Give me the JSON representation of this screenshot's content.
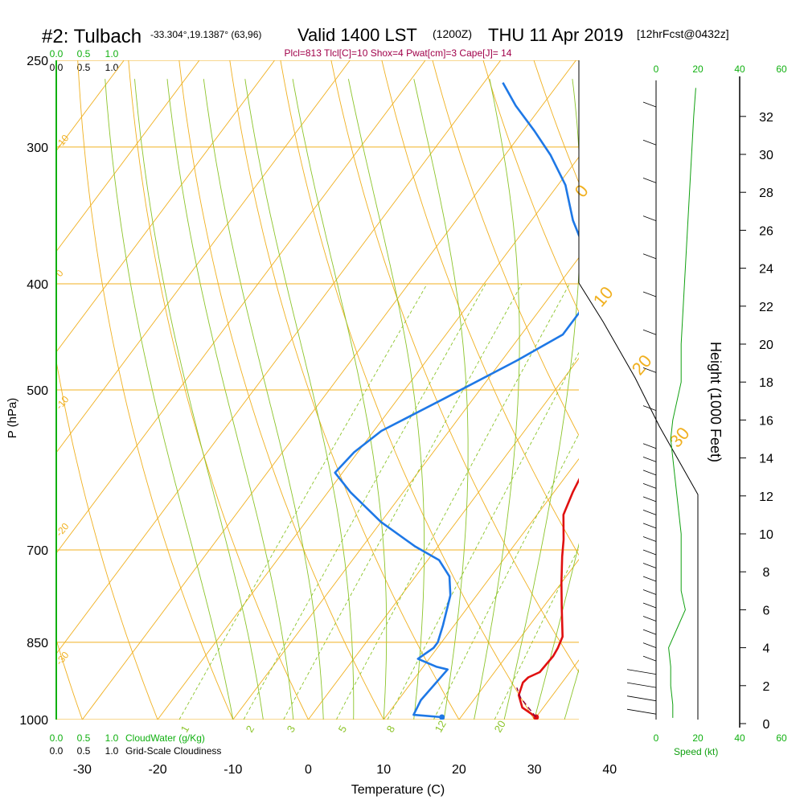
{
  "header": {
    "title": "#2: Tulbach",
    "coords": "-33.304°,19.1387° (63,96)",
    "valid": "Valid 1400 LST",
    "zulu": "(1200Z)",
    "date": "THU 11 Apr 2019",
    "fcst": "[12hrFcst@0432z]",
    "indices": "Plcl=813 Tlcl[C]=10 Shox=4 Pwat[cm]=3 Cape[J]= 14"
  },
  "labels": {
    "y_axis": "P (hPa)",
    "x_axis": "Temperature (C)",
    "height_axis": "Height (1000 Feet)",
    "speed_axis": "Speed (kt)",
    "cloudwater": "CloudWater (g/Kg)",
    "cloudiness": "Grid-Scale Cloudiness",
    "cw_ticks": [
      "0.0",
      "0.5",
      "1.0"
    ],
    "cloud_ticks": [
      "0.0",
      "0.5",
      "1.0"
    ]
  },
  "colors": {
    "isotherm": "#f0b020",
    "dry_adiabat": "#8cc42a",
    "moist_adiabat": "#8cc42a",
    "temperature": "#e01010",
    "dewpoint": "#1e78e6",
    "parcel": "#8b0040",
    "speed_line": "#10a010",
    "indices": "#a0004a",
    "grid_green": "#10b010"
  },
  "chart_data": {
    "type": "line",
    "title": "#2: Tulbach Valid 1400 LST (1200Z) THU 11 Apr 2019",
    "xlabel": "Temperature (C)",
    "ylabel": "P (hPa)",
    "y_scale": "log",
    "ylim": [
      1000,
      250
    ],
    "xlim": [
      -35,
      45
    ],
    "x_ticks": [
      -30,
      -20,
      -10,
      0,
      10,
      20,
      30,
      40
    ],
    "p_ticks": [
      250,
      300,
      400,
      500,
      700,
      850,
      1000
    ],
    "height_ticks_kft": [
      0,
      2,
      4,
      6,
      8,
      10,
      12,
      14,
      16,
      18,
      20,
      22,
      24,
      26,
      28,
      30,
      32
    ],
    "speed_ticks_kt": [
      0,
      20,
      40,
      60
    ],
    "isotherm_labels": [
      "-10",
      "0",
      "10",
      "20",
      "30",
      "0",
      "-10",
      "-20",
      "-30"
    ],
    "moist_labels": [
      "1",
      "2",
      "3",
      "5",
      "8",
      "12",
      "20"
    ],
    "series": [
      {
        "name": "Temperature",
        "points": [
          [
            30.0,
            995
          ],
          [
            27.2,
            975
          ],
          [
            25.5,
            950
          ],
          [
            24.8,
            925
          ],
          [
            25.0,
            915
          ],
          [
            26.0,
            905
          ],
          [
            26.2,
            875
          ],
          [
            26.0,
            860
          ],
          [
            25.5,
            840
          ],
          [
            22.5,
            790
          ],
          [
            20.0,
            750
          ],
          [
            17.5,
            710
          ],
          [
            16.0,
            685
          ],
          [
            13.5,
            650
          ],
          [
            12.5,
            620
          ],
          [
            12.0,
            600
          ],
          [
            11.0,
            560
          ],
          [
            10.0,
            525
          ],
          [
            9.0,
            500
          ],
          [
            7.5,
            465
          ],
          [
            5.5,
            430
          ],
          [
            3.5,
            400
          ],
          [
            1.5,
            375
          ],
          [
            -1.0,
            350
          ],
          [
            -3.5,
            325
          ],
          [
            -6.5,
            310
          ],
          [
            -9.0,
            295
          ],
          [
            -12.0,
            282
          ],
          [
            -15.5,
            270
          ],
          [
            -18.5,
            260
          ]
        ]
      },
      {
        "name": "Dewpoint",
        "points": [
          [
            17.5,
            995
          ],
          [
            13.5,
            990
          ],
          [
            13.0,
            960
          ],
          [
            13.5,
            900
          ],
          [
            11.8,
            895
          ],
          [
            8.5,
            880
          ],
          [
            9.5,
            860
          ],
          [
            9.5,
            850
          ],
          [
            8.5,
            820
          ],
          [
            6.5,
            770
          ],
          [
            4.5,
            740
          ],
          [
            1.5,
            715
          ],
          [
            -3.0,
            695
          ],
          [
            -10.0,
            660
          ],
          [
            -17.0,
            620
          ],
          [
            -21.0,
            595
          ],
          [
            -20.5,
            570
          ],
          [
            -19.0,
            545
          ],
          [
            -14.0,
            510
          ],
          [
            -8.0,
            470
          ],
          [
            -4.5,
            445
          ],
          [
            -4.5,
            420
          ],
          [
            -6.0,
            400
          ],
          [
            -9.5,
            375
          ],
          [
            -14.5,
            350
          ],
          [
            -19.0,
            325
          ],
          [
            -24.0,
            305
          ],
          [
            -28.5,
            290
          ],
          [
            -33.5,
            275
          ],
          [
            -37.5,
            262
          ]
        ]
      },
      {
        "name": "Parcel",
        "points": [
          [
            30.0,
            995
          ],
          [
            28.0,
            975
          ],
          [
            26.0,
            955
          ],
          [
            24.5,
            935
          ]
        ]
      }
    ],
    "speed_profile_kt": [
      [
        2,
        0.3
      ],
      [
        2,
        1
      ],
      [
        1,
        2
      ],
      [
        1,
        3
      ],
      [
        0,
        4
      ],
      [
        4,
        5
      ],
      [
        8,
        6
      ],
      [
        6,
        7
      ],
      [
        6,
        8
      ],
      [
        6,
        9
      ],
      [
        6,
        10
      ],
      [
        5,
        11
      ],
      [
        4,
        12
      ],
      [
        2,
        14
      ],
      [
        1,
        15
      ],
      [
        2,
        16
      ],
      [
        4,
        17
      ],
      [
        6,
        18
      ],
      [
        6,
        19
      ],
      [
        6,
        20
      ],
      [
        7,
        22
      ],
      [
        8,
        24
      ],
      [
        9,
        26
      ],
      [
        10,
        28
      ],
      [
        11,
        30
      ],
      [
        12,
        32
      ],
      [
        13,
        33.5
      ]
    ]
  }
}
